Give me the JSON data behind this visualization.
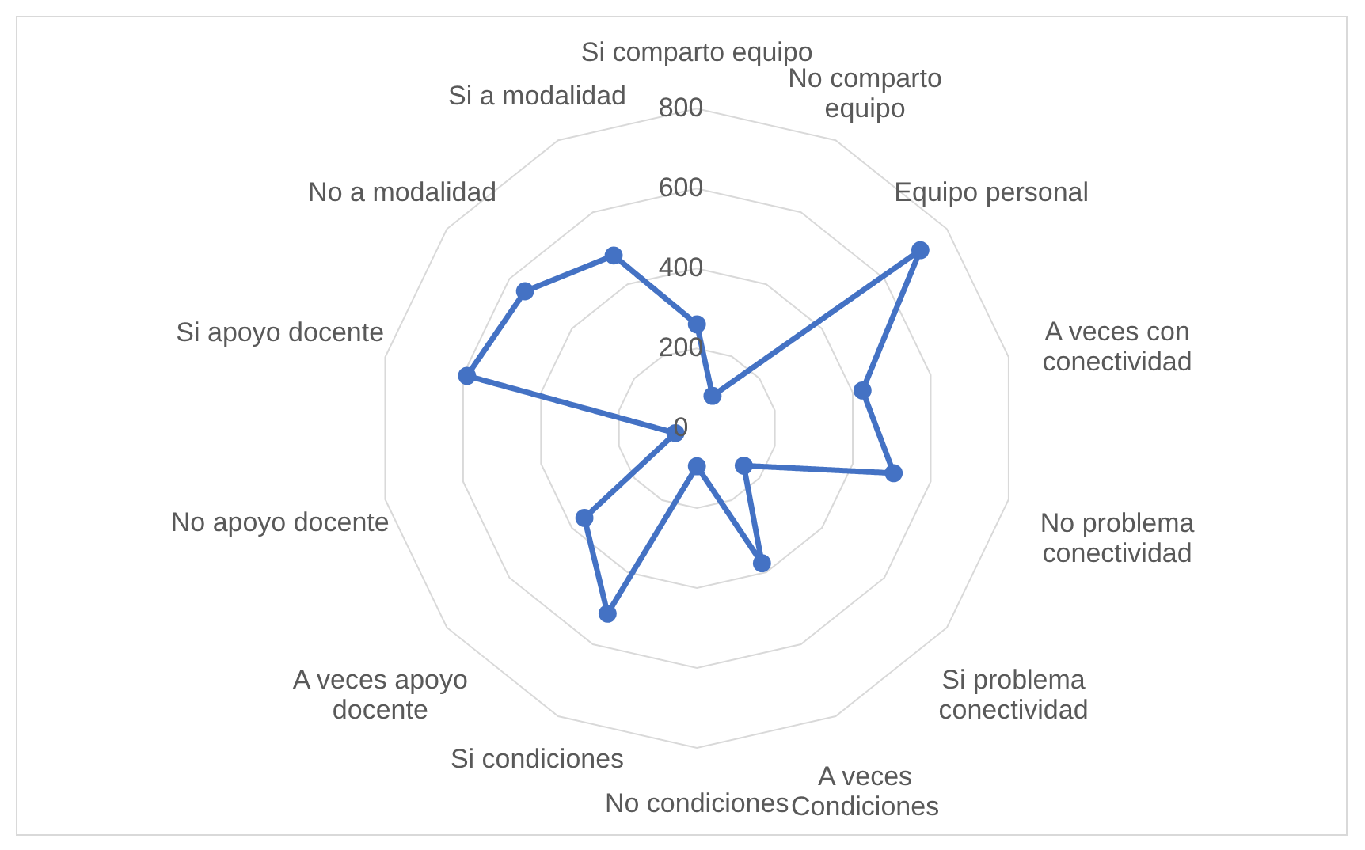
{
  "chart_data": {
    "type": "radar",
    "categories": [
      "Si comparto equipo",
      "No comparto equipo",
      "Equipo personal",
      "A veces con conectividad",
      "No problema conectividad",
      "Si problema conectividad",
      "A veces Condiciones",
      "No condiciones",
      "Si condiciones",
      "A veces apoyo docente",
      "No apoyo docente",
      "Si apoyo docente",
      "No a modalidad",
      "Si a modalidad"
    ],
    "series": [
      {
        "color": "#4472c4",
        "values": [
          260,
          90,
          715,
          425,
          505,
          150,
          375,
          95,
          515,
          360,
          55,
          590,
          550,
          480
        ]
      }
    ],
    "ylim": [
      0,
      800
    ],
    "yticks": [
      0,
      200,
      400,
      600,
      800
    ],
    "grid": true,
    "marker": "circle",
    "line_style": "solid"
  }
}
